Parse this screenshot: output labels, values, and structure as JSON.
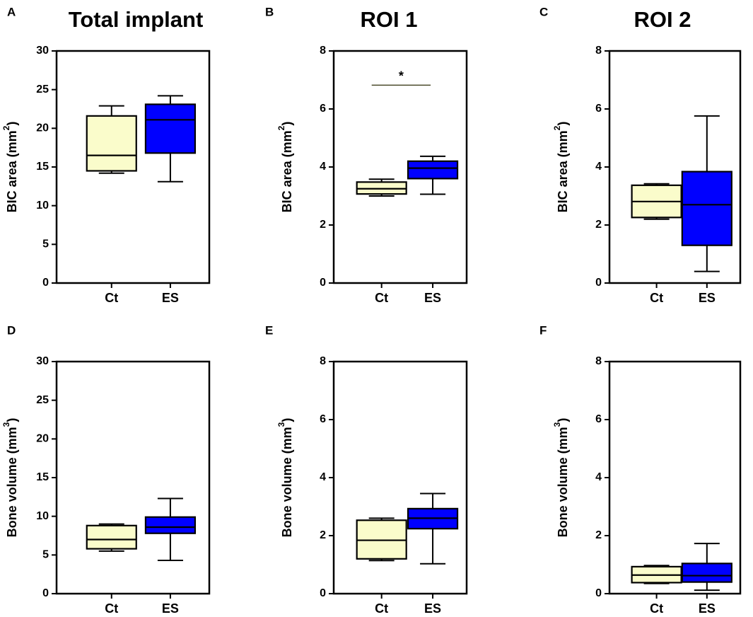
{
  "colors": {
    "ct": "#fafccb",
    "es": "#0000ff",
    "stroke": "#000000",
    "sig_line": "#4a4a2a"
  },
  "chart_data": [
    {
      "panel": "A",
      "title": "Total implant",
      "type": "box",
      "ylabel": "BIC area (mm",
      "ylabel_sup": "2",
      "ylabel_suffix": ")",
      "ylim": [
        0,
        30
      ],
      "yticks": [
        0,
        5,
        10,
        15,
        20,
        25,
        30
      ],
      "categories": [
        "Ct",
        "ES"
      ],
      "boxes": [
        {
          "group": "Ct",
          "min": 14.2,
          "q1": 14.5,
          "median": 16.5,
          "q3": 21.6,
          "max": 22.9
        },
        {
          "group": "ES",
          "min": 13.1,
          "q1": 16.8,
          "median": 21.1,
          "q3": 23.1,
          "max": 24.2
        }
      ]
    },
    {
      "panel": "B",
      "title": "ROI 1",
      "type": "box",
      "ylabel": "BIC area (mm",
      "ylabel_sup": "2",
      "ylabel_suffix": ")",
      "ylim": [
        0,
        8
      ],
      "yticks": [
        0,
        2,
        4,
        6,
        8
      ],
      "categories": [
        "Ct",
        "ES"
      ],
      "boxes": [
        {
          "group": "Ct",
          "min": 3.0,
          "q1": 3.07,
          "median": 3.25,
          "q3": 3.48,
          "max": 3.58
        },
        {
          "group": "ES",
          "min": 3.06,
          "q1": 3.6,
          "median": 3.96,
          "q3": 4.2,
          "max": 4.37
        }
      ],
      "significance": {
        "label": "*",
        "y": 6.82
      }
    },
    {
      "panel": "C",
      "title": "ROI 2",
      "type": "box",
      "ylabel": "BIC area (mm",
      "ylabel_sup": "2",
      "ylabel_suffix": ")",
      "ylim": [
        0,
        8
      ],
      "yticks": [
        0,
        2,
        4,
        6,
        8
      ],
      "categories": [
        "Ct",
        "ES"
      ],
      "boxes": [
        {
          "group": "Ct",
          "min": 2.2,
          "q1": 2.26,
          "median": 2.81,
          "q3": 3.37,
          "max": 3.42
        },
        {
          "group": "ES",
          "min": 0.4,
          "q1": 1.3,
          "median": 2.7,
          "q3": 3.84,
          "max": 5.76
        }
      ]
    },
    {
      "panel": "D",
      "title": "",
      "type": "box",
      "ylabel": "Bone volume (mm",
      "ylabel_sup": "3",
      "ylabel_suffix": ")",
      "ylim": [
        0,
        30
      ],
      "yticks": [
        0,
        5,
        10,
        15,
        20,
        25,
        30
      ],
      "categories": [
        "Ct",
        "ES"
      ],
      "boxes": [
        {
          "group": "Ct",
          "min": 5.5,
          "q1": 5.8,
          "median": 7.0,
          "q3": 8.8,
          "max": 9.0
        },
        {
          "group": "ES",
          "min": 4.3,
          "q1": 7.8,
          "median": 8.6,
          "q3": 9.9,
          "max": 12.3
        }
      ]
    },
    {
      "panel": "E",
      "title": "",
      "type": "box",
      "ylabel": "Bone volume (mm",
      "ylabel_sup": "3",
      "ylabel_suffix": ")",
      "ylim": [
        0,
        8
      ],
      "yticks": [
        0,
        2,
        4,
        6,
        8
      ],
      "categories": [
        "Ct",
        "ES"
      ],
      "boxes": [
        {
          "group": "Ct",
          "min": 1.14,
          "q1": 1.2,
          "median": 1.84,
          "q3": 2.53,
          "max": 2.6
        },
        {
          "group": "ES",
          "min": 1.03,
          "q1": 2.24,
          "median": 2.6,
          "q3": 2.93,
          "max": 3.45
        }
      ]
    },
    {
      "panel": "F",
      "title": "",
      "type": "box",
      "ylabel": "Bone volume (mm",
      "ylabel_sup": "3",
      "ylabel_suffix": ")",
      "ylim": [
        0,
        8
      ],
      "yticks": [
        0,
        2,
        4,
        6,
        8
      ],
      "categories": [
        "Ct",
        "ES"
      ],
      "boxes": [
        {
          "group": "Ct",
          "min": 0.35,
          "q1": 0.38,
          "median": 0.64,
          "q3": 0.93,
          "max": 0.97
        },
        {
          "group": "ES",
          "min": 0.12,
          "q1": 0.4,
          "median": 0.62,
          "q3": 1.04,
          "max": 1.73
        }
      ]
    }
  ]
}
